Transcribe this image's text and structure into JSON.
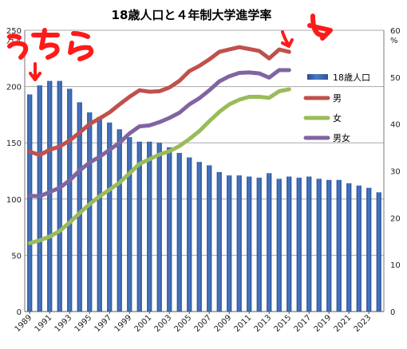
{
  "chart_data": {
    "type": "bar+line",
    "title": "18歳人口と４年制大学進学率",
    "left_unit": "万人",
    "right_unit": "%",
    "left_ticks": [
      0,
      50,
      100,
      150,
      200,
      250
    ],
    "right_ticks": [
      0,
      10,
      20,
      30,
      40,
      50,
      60
    ],
    "ylim_left": [
      0,
      250
    ],
    "ylim_right": [
      0,
      60
    ],
    "grid": true,
    "x_tick_labels": [
      "1989",
      "1991",
      "1993",
      "1995",
      "1997",
      "1999",
      "2001",
      "2003",
      "2005",
      "2007",
      "2009",
      "2011",
      "2013",
      "2015",
      "2017",
      "2019",
      "2021",
      "2023"
    ],
    "years": [
      1989,
      1990,
      1991,
      1992,
      1993,
      1994,
      1995,
      1996,
      1997,
      1998,
      1999,
      2000,
      2001,
      2002,
      2003,
      2004,
      2005,
      2006,
      2007,
      2008,
      2009,
      2010,
      2011,
      2012,
      2013,
      2014,
      2015,
      2016,
      2017,
      2018,
      2019,
      2020,
      2021,
      2022,
      2023,
      2024
    ],
    "bars": {
      "name": "18歳人口",
      "axis": "left",
      "color": "#4a7ac8",
      "values": [
        193,
        201,
        205,
        205,
        198,
        186,
        177,
        173,
        168,
        162,
        155,
        151,
        151,
        150,
        146,
        141,
        137,
        133,
        130,
        124,
        121,
        121,
        120,
        119,
        123,
        118,
        120,
        119,
        120,
        118,
        117,
        117,
        114,
        112,
        110,
        106
      ]
    },
    "series": [
      {
        "name": "男",
        "axis": "right",
        "color": "#c0504d",
        "x": [
          1989,
          1990,
          1991,
          1992,
          1993,
          1994,
          1995,
          1996,
          1997,
          1998,
          1999,
          2000,
          2001,
          2002,
          2003,
          2004,
          2005,
          2006,
          2007,
          2008,
          2009,
          2010,
          2011,
          2012,
          2013,
          2014,
          2015,
          2016
        ],
        "values": [
          34.1,
          33.4,
          34.5,
          35.2,
          36.5,
          38.2,
          40.0,
          41.2,
          42.5,
          44.2,
          45.8,
          47.2,
          46.9,
          47.0,
          47.8,
          49.2,
          51.3,
          52.4,
          53.8,
          55.4,
          55.9,
          56.4,
          56.0,
          55.6,
          54.0,
          55.9,
          55.4,
          null
        ]
      },
      {
        "name": "女",
        "axis": "right",
        "color": "#9bbb59",
        "x": [
          1989,
          1990,
          1991,
          1992,
          1993,
          1994,
          1995,
          1996,
          1997,
          1998,
          1999,
          2000,
          2001,
          2002,
          2003,
          2004,
          2005,
          2006,
          2007,
          2008,
          2009,
          2010,
          2011,
          2012,
          2013,
          2014,
          2015,
          2016
        ],
        "values": [
          14.6,
          15.2,
          16.0,
          17.2,
          19.0,
          21.0,
          22.9,
          24.6,
          26.0,
          27.5,
          29.5,
          31.5,
          32.5,
          33.5,
          34.2,
          35.3,
          36.8,
          38.5,
          40.6,
          42.6,
          44.2,
          45.2,
          45.8,
          45.8,
          45.6,
          47.0,
          47.4,
          null
        ]
      },
      {
        "name": "男女",
        "axis": "right",
        "color": "#8064a2",
        "x": [
          1989,
          1990,
          1991,
          1992,
          1993,
          1994,
          1995,
          1996,
          1997,
          1998,
          1999,
          2000,
          2001,
          2002,
          2003,
          2004,
          2005,
          2006,
          2007,
          2008,
          2009,
          2010,
          2011,
          2012,
          2013,
          2014,
          2015,
          2016
        ],
        "values": [
          24.7,
          24.6,
          25.5,
          26.4,
          28.0,
          30.1,
          31.8,
          33.0,
          34.5,
          36.0,
          38.0,
          39.5,
          39.7,
          40.4,
          41.3,
          42.4,
          44.2,
          45.5,
          47.2,
          49.1,
          50.2,
          50.9,
          51.0,
          50.8,
          49.9,
          51.5,
          51.5,
          null
        ]
      }
    ],
    "legend_position": "right",
    "annotations": {
      "handwritten_text": "うちら"
    }
  }
}
